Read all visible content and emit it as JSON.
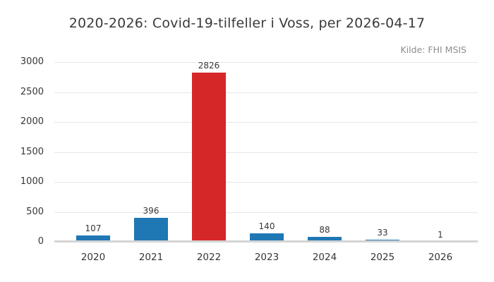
{
  "title": "2020-2026: Covid-19-tilfeller i Voss, per 2026-04-17",
  "source_note": "Kilde: FHI MSIS",
  "chart_data": {
    "type": "bar",
    "title": "2020-2026: Covid-19-tilfeller i Voss, per 2026-04-17",
    "annotation": "Kilde: FHI MSIS",
    "categories": [
      "2020",
      "2021",
      "2022",
      "2023",
      "2024",
      "2025",
      "2026"
    ],
    "values": [
      107,
      396,
      2826,
      140,
      88,
      33,
      1
    ],
    "value_labels": [
      "107",
      "396",
      "2826",
      "140",
      "88",
      "33",
      "1"
    ],
    "bar_colors": [
      "#1f77b4",
      "#1f77b4",
      "#d62728",
      "#1f77b4",
      "#1f77b4",
      "#1f77b4",
      "#1f77b4"
    ],
    "xlabel": "",
    "ylabel": "",
    "ylim": [
      0,
      3000
    ],
    "yticks": [
      0,
      500,
      1000,
      1500,
      2000,
      2500,
      3000
    ],
    "grid": "horizontal",
    "legend": "none",
    "colors": {
      "default_bar": "#1f77b4",
      "highlight_bar": "#d62728",
      "gridline": "#e7e7e7",
      "axis_baseline": "#d4d4d4",
      "tick_text": "#363636",
      "title_text": "#3a3a3a",
      "muted_text": "#8c8c8c",
      "background": "#ffffff"
    }
  }
}
